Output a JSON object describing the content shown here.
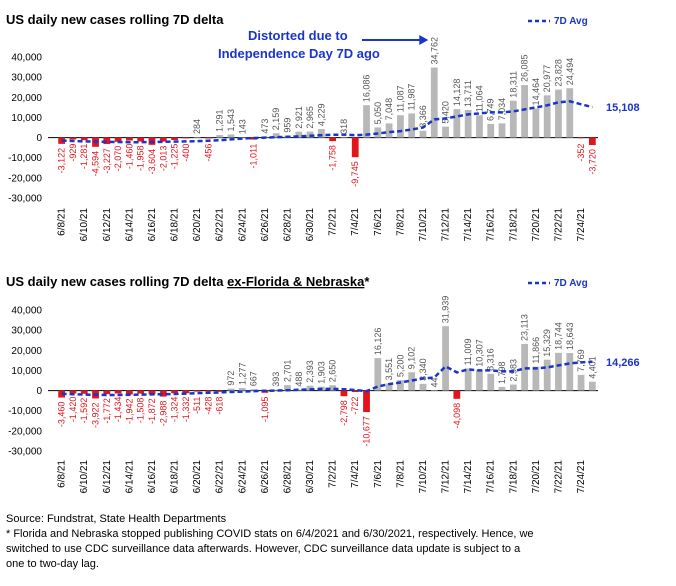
{
  "chart_data": [
    {
      "type": "bar",
      "title": "US daily new cases rolling 7D delta",
      "legend": "7D Avg",
      "legend_position": "top-right",
      "annotation": [
        "Distorted due to",
        "Independence Day 7D ago"
      ],
      "end_label": "15,108",
      "ylim": [
        -30000,
        40000
      ],
      "yticks": [
        "40,000",
        "30,000",
        "20,000",
        "10,000",
        "0",
        "-10,000",
        "-20,000",
        "-30,000"
      ],
      "xtick_labels": [
        "6/8/21",
        "6/10/21",
        "6/12/21",
        "6/14/21",
        "6/16/21",
        "6/18/21",
        "6/20/21",
        "6/22/21",
        "6/24/21",
        "6/26/21",
        "6/28/21",
        "6/30/21",
        "7/2/21",
        "7/4/21",
        "7/6/21",
        "7/8/21",
        "7/10/21",
        "7/12/21",
        "7/14/21",
        "7/16/21",
        "7/18/21",
        "7/20/21",
        "7/22/21",
        "7/24/21"
      ],
      "values": [
        -3122,
        -929,
        -1281,
        -4594,
        -3227,
        -2070,
        -1460,
        -1958,
        -3604,
        -2013,
        -1225,
        -400,
        284,
        -456,
        1291,
        1543,
        143,
        -1011,
        473,
        2159,
        959,
        2921,
        2965,
        4229,
        -1758,
        318,
        -9745,
        16086,
        5050,
        7048,
        11087,
        11987,
        3366,
        34762,
        5420,
        14128,
        13711,
        11064,
        6749,
        7034,
        18311,
        26085,
        14464,
        20977,
        23828,
        24494,
        -352,
        -3720
      ],
      "value_labels": [
        "-3,122",
        "-929",
        "-1,281",
        "-4,594",
        "-3,227",
        "-2,070",
        "-1,460",
        "-1,958",
        "-3,604",
        "-2,013",
        "-1,225",
        "-400",
        "284",
        "-456",
        "1,291",
        "1,543",
        "143",
        "-1,011",
        "473",
        "2,159",
        "959",
        "2,921",
        "2,965",
        "4,229",
        "-1,758",
        "318",
        "-9,745",
        "16,086",
        "5,050",
        "7,048",
        "11,087",
        "11,987",
        "3,366",
        "34,762",
        "5,420",
        "14,128",
        "13,711",
        "11,064",
        "6,749",
        "7,034",
        "18,311",
        "26,085",
        "14,464",
        "20,977",
        "23,828",
        "24,494",
        "-352",
        "-3,720"
      ],
      "avg_7d": [
        -1500,
        -1700,
        -1900,
        -2000,
        -2100,
        -2200,
        -2300,
        -2300,
        -2200,
        -2100,
        -2000,
        -1900,
        -1800,
        -1600,
        -1300,
        -900,
        -500,
        -200,
        0,
        200,
        400,
        600,
        900,
        1200,
        1400,
        1500,
        1200,
        1500,
        2000,
        2700,
        3200,
        4000,
        5000,
        9000,
        9500,
        10500,
        11500,
        12000,
        12500,
        12500,
        13000,
        14000,
        15000,
        16000,
        17500,
        18000,
        16500,
        15108
      ],
      "highlight_red": [
        3,
        26,
        47
      ]
    },
    {
      "type": "bar",
      "title": "US daily new cases rolling 7D delta ",
      "title_underlined": "ex-Florida & Nebraska",
      "title_suffix": "*",
      "legend": "7D Avg",
      "legend_position": "top-right",
      "end_label": "14,266",
      "ylim": [
        -30000,
        40000
      ],
      "yticks": [
        "40,000",
        "30,000",
        "20,000",
        "10,000",
        "0",
        "-10,000",
        "-20,000",
        "-30,000"
      ],
      "xtick_labels": [
        "6/8/21",
        "6/10/21",
        "6/12/21",
        "6/14/21",
        "6/16/21",
        "6/18/21",
        "6/20/21",
        "6/22/21",
        "6/24/21",
        "6/26/21",
        "6/28/21",
        "6/30/21",
        "7/2/21",
        "7/4/21",
        "7/6/21",
        "7/8/21",
        "7/10/21",
        "7/12/21",
        "7/14/21",
        "7/16/21",
        "7/18/21",
        "7/20/21",
        "7/22/21",
        "7/24/21"
      ],
      "values": [
        -3460,
        -1420,
        -1592,
        -3922,
        -1772,
        -1434,
        -1942,
        -1508,
        -1872,
        -2988,
        -1324,
        -1332,
        -511,
        -428,
        -618,
        972,
        1277,
        667,
        -1095,
        393,
        2701,
        488,
        2393,
        1903,
        2650,
        -2798,
        -722,
        -10677,
        16126,
        3551,
        5200,
        9102,
        3340,
        44,
        31939,
        -4098,
        11009,
        10307,
        8316,
        1798,
        2983,
        23113,
        11866,
        15329,
        18744,
        18643,
        7769,
        4401
      ],
      "value_labels": [
        "-3,460",
        "-1,420",
        "-1,592",
        "-3,922",
        "-1,772",
        "-1,434",
        "-1,942",
        "-1,508",
        "-1,872",
        "-2,988",
        "-1,324",
        "-1,332",
        "-511",
        "-428",
        "-618",
        "972",
        "1,277",
        "667",
        "-1,095",
        "393",
        "2,701",
        "488",
        "2,393",
        "1,903",
        "2,650",
        "-2,798",
        "-722",
        "-10,677",
        "16,126",
        "3,551",
        "5,200",
        "9,102",
        "3,340",
        "44",
        "31,939",
        "-4,098",
        "11,009",
        "10,307",
        "8,316",
        "1,798",
        "2,983",
        "23,113",
        "11,866",
        "15,329",
        "18,744",
        "18,643",
        "7,769",
        "4,401"
      ],
      "avg_7d": [
        -1600,
        -1800,
        -2000,
        -2100,
        -2200,
        -2200,
        -2100,
        -2000,
        -1900,
        -1800,
        -1700,
        -1500,
        -1300,
        -1100,
        -900,
        -700,
        -500,
        -300,
        -100,
        0,
        200,
        400,
        600,
        800,
        900,
        700,
        300,
        -300,
        2000,
        3200,
        4000,
        5000,
        6000,
        6500,
        12000,
        9000,
        10500,
        10000,
        10000,
        9500,
        9500,
        11000,
        11000,
        11500,
        12500,
        13500,
        14000,
        14266
      ],
      "highlight_red": [
        3,
        27,
        35
      ]
    }
  ],
  "notes": {
    "source": "Source: Fundstrat, State Health Departments",
    "footnote_lines": [
      "* Florida and Nebraska  stopped publishing COVID stats on 6/4/2021 and 6/30/2021, respectively. Hence, we",
      "switched to use CDC surveillance data afterwards. However, CDC surveillance data update is subject to a",
      "one to two-day lag."
    ]
  }
}
